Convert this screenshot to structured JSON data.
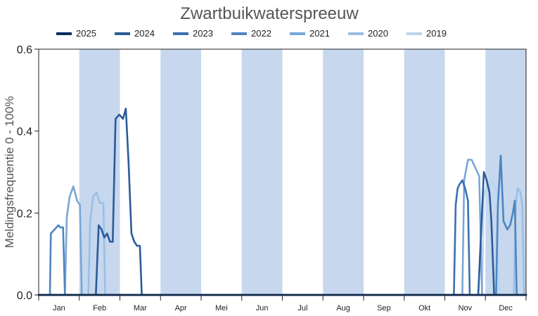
{
  "chart_data": {
    "type": "line",
    "title": "Zwartbuikwaterspreeuw",
    "xlabel": "",
    "ylabel": "Meldingsfrequentie 0 - 100%",
    "ylim": [
      0,
      0.6
    ],
    "y_ticks": [
      "0.0",
      "0.2",
      "0.4",
      "0.6"
    ],
    "x_range": [
      1,
      53
    ],
    "month_labels": [
      "Jan",
      "Feb",
      "Mar",
      "Apr",
      "Mei",
      "Jun",
      "Jul",
      "Aug",
      "Sep",
      "Okt",
      "Nov",
      "Dec"
    ],
    "shaded_months": [
      "Feb",
      "Apr",
      "Jun",
      "Aug",
      "Okt",
      "Dec"
    ],
    "shade_color": "#c6d7ee",
    "grid": false,
    "legend_position": "top",
    "series": [
      {
        "name": "2025",
        "color": "#0b2e63",
        "x": [
          1,
          53
        ],
        "values": [
          0,
          0
        ]
      },
      {
        "name": "2024",
        "color": "#2a5b9a",
        "x": [
          1,
          7.1,
          7.4,
          7.7,
          8.0,
          8.3,
          8.6,
          8.9,
          9.2,
          9.6,
          10.0,
          10.3,
          10.6,
          10.9,
          11.2,
          11.5,
          11.8,
          12.0,
          53
        ],
        "values": [
          0,
          0,
          0.17,
          0.16,
          0.14,
          0.15,
          0.13,
          0.13,
          0.43,
          0.44,
          0.43,
          0.455,
          0.32,
          0.15,
          0.13,
          0.12,
          0.12,
          0,
          0
        ]
      },
      {
        "name": "2024b",
        "color": "#2a5b9a",
        "x": [
          1,
          47.9,
          48.5,
          48.8,
          49.1,
          49.3,
          49.6,
          53
        ],
        "values": [
          0,
          0,
          0.3,
          0.28,
          0.25,
          0.18,
          0,
          0
        ]
      },
      {
        "name": "2023",
        "color": "#3a70b0",
        "x": [
          1,
          45.3,
          45.5,
          45.7,
          45.9,
          46.2,
          46.5,
          46.8,
          47.0,
          53
        ],
        "values": [
          0,
          0,
          0.22,
          0.26,
          0.27,
          0.28,
          0.26,
          0.23,
          0,
          0
        ]
      },
      {
        "name": "2022",
        "color": "#4f85bf",
        "x": [
          1,
          2.2,
          2.3,
          2.7,
          3.1,
          3.3,
          3.6,
          3.8,
          53
        ],
        "values": [
          0,
          0,
          0.15,
          0.16,
          0.17,
          0.165,
          0.165,
          0,
          0
        ]
      },
      {
        "name": "2022b",
        "color": "#4f85bf",
        "x": [
          1,
          49.8,
          50.0,
          50.3,
          50.6,
          51.0,
          51.3,
          51.6,
          51.8,
          52.0,
          53
        ],
        "values": [
          0,
          0,
          0.22,
          0.34,
          0.18,
          0.16,
          0.17,
          0.2,
          0.23,
          0,
          0
        ]
      },
      {
        "name": "2021",
        "color": "#7aa6d6",
        "x": [
          1,
          3.8,
          4.0,
          4.3,
          4.7,
          5.1,
          5.4,
          5.6,
          53
        ],
        "values": [
          0,
          0,
          0.19,
          0.24,
          0.265,
          0.23,
          0.22,
          0,
          0
        ]
      },
      {
        "name": "2021b",
        "color": "#7aa6d6",
        "x": [
          1,
          46.2,
          46.4,
          46.8,
          47.2,
          47.6,
          48.0,
          48.3,
          53
        ],
        "values": [
          0,
          0,
          0.28,
          0.33,
          0.33,
          0.31,
          0.29,
          0,
          0
        ]
      },
      {
        "name": "2020",
        "color": "#9bbfe3",
        "x": [
          1,
          6.3,
          6.5,
          6.8,
          7.2,
          7.5,
          7.9,
          8.1,
          53
        ],
        "values": [
          0,
          0,
          0.18,
          0.24,
          0.25,
          0.225,
          0.225,
          0,
          0
        ]
      },
      {
        "name": "2020b",
        "color": "#9bbfe3",
        "x": [
          1,
          51.7,
          51.9,
          52.1,
          52.4,
          52.6,
          52.8,
          53
        ],
        "values": [
          0,
          0,
          0.22,
          0.26,
          0.25,
          0.22,
          0,
          0
        ]
      },
      {
        "name": "2019",
        "color": "#b9d5f1",
        "x": [
          1,
          48.3,
          48.5,
          48.8,
          49.1,
          49.3,
          49.6,
          49.9,
          50.1,
          53
        ],
        "values": [
          0,
          0,
          0.24,
          0.27,
          0.26,
          0.28,
          0.27,
          0.25,
          0,
          0
        ]
      }
    ],
    "legend": [
      {
        "label": "2025",
        "color": "#0b2e63"
      },
      {
        "label": "2024",
        "color": "#2a5b9a"
      },
      {
        "label": "2023",
        "color": "#3a70b0"
      },
      {
        "label": "2022",
        "color": "#4f85bf"
      },
      {
        "label": "2021",
        "color": "#7aa6d6"
      },
      {
        "label": "2020",
        "color": "#9bbfe3"
      },
      {
        "label": "2019",
        "color": "#b9d5f1"
      }
    ]
  }
}
